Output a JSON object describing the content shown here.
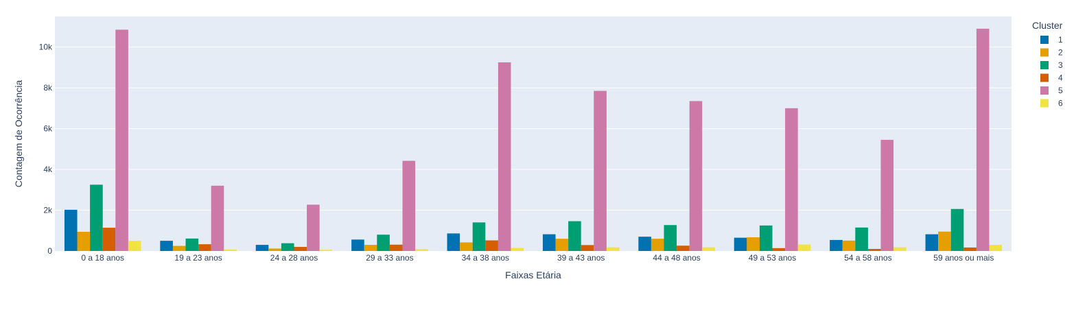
{
  "chart_data": {
    "type": "bar",
    "xlabel": "Faixas Etária",
    "ylabel": "Contagem de Ocorrência",
    "ylim": [
      0,
      11500
    ],
    "y_ticks": [
      {
        "value": 0,
        "label": "0"
      },
      {
        "value": 2000,
        "label": "2k"
      },
      {
        "value": 4000,
        "label": "4k"
      },
      {
        "value": 6000,
        "label": "6k"
      },
      {
        "value": 8000,
        "label": "8k"
      },
      {
        "value": 10000,
        "label": "10k"
      }
    ],
    "grid": true,
    "legend": {
      "title": "Cluster",
      "position": "right"
    },
    "categories": [
      "0 a 18 anos",
      "19 a 23 anos",
      "24 a 28 anos",
      "29 a 33 anos",
      "34 a 38 anos",
      "39 a 43 anos",
      "44 a 48 anos",
      "49 a 53 anos",
      "54 a 58 anos",
      "59 anos ou mais"
    ],
    "series": [
      {
        "name": "1",
        "color": "#0072b2",
        "values": [
          2020,
          500,
          300,
          560,
          860,
          820,
          700,
          650,
          540,
          820
        ]
      },
      {
        "name": "2",
        "color": "#e69f00",
        "values": [
          940,
          250,
          120,
          300,
          420,
          600,
          600,
          670,
          510,
          950
        ]
      },
      {
        "name": "3",
        "color": "#009e73",
        "values": [
          3250,
          610,
          380,
          800,
          1400,
          1460,
          1270,
          1250,
          1150,
          2060
        ]
      },
      {
        "name": "4",
        "color": "#d55e00",
        "values": [
          1140,
          330,
          200,
          310,
          520,
          290,
          260,
          140,
          100,
          170
        ]
      },
      {
        "name": "5",
        "color": "#cc79a7",
        "values": [
          10850,
          3200,
          2270,
          4420,
          9250,
          7850,
          7350,
          7000,
          5450,
          10900
        ]
      },
      {
        "name": "6",
        "color": "#f0e442",
        "values": [
          500,
          70,
          60,
          90,
          150,
          180,
          180,
          320,
          180,
          300
        ]
      }
    ]
  }
}
